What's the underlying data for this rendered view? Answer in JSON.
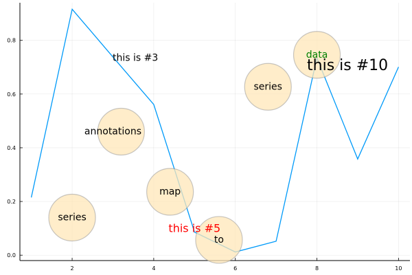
{
  "chart_data": {
    "type": "line",
    "title": "",
    "xlabel": "",
    "ylabel": "",
    "xlim": [
      0.72,
      10.28
    ],
    "ylim": [
      -0.02,
      0.94
    ],
    "x_ticks": [
      2,
      4,
      6,
      8,
      10
    ],
    "y_ticks": [
      0.0,
      0.2,
      0.4,
      0.6,
      0.8
    ],
    "grid": true,
    "legend": "none",
    "series": [
      {
        "color": "#009af9",
        "x": [
          1,
          2,
          3,
          4,
          5,
          6,
          7,
          8,
          9,
          10
        ],
        "y": [
          0.215,
          0.916,
          0.738,
          0.561,
          0.086,
          0.012,
          0.052,
          0.735,
          0.358,
          0.701
        ]
      }
    ],
    "markers": {
      "color": "#ffe7b8",
      "points": [
        {
          "x": 2.0,
          "y": 0.14
        },
        {
          "x": 3.2,
          "y": 0.46
        },
        {
          "x": 4.4,
          "y": 0.236
        },
        {
          "x": 5.6,
          "y": 0.057
        },
        {
          "x": 6.8,
          "y": 0.627
        },
        {
          "x": 8.0,
          "y": 0.746
        }
      ]
    },
    "annotations": [
      {
        "text": "series",
        "x": 2.0,
        "y": 0.14,
        "color": "#000000",
        "size": 14
      },
      {
        "text": "annotations",
        "x": 3.0,
        "y": 0.46,
        "color": "#000000",
        "size": 14
      },
      {
        "text": "this is #3",
        "x": 3.55,
        "y": 0.734,
        "color": "#000000",
        "size": 14
      },
      {
        "text": "map",
        "x": 4.4,
        "y": 0.236,
        "color": "#000000",
        "size": 14
      },
      {
        "text": "this is #5",
        "x": 5.0,
        "y": 0.1,
        "color": "#ff0000",
        "size": 16
      },
      {
        "text": "to",
        "x": 5.6,
        "y": 0.057,
        "color": "#000000",
        "size": 14
      },
      {
        "text": "series",
        "x": 6.8,
        "y": 0.627,
        "color": "#000000",
        "size": 14
      },
      {
        "text": "data",
        "x": 8.0,
        "y": 0.746,
        "color": "#008000",
        "size": 14
      },
      {
        "text": "this is #10",
        "x": 8.75,
        "y": 0.706,
        "color": "#000000",
        "size": 22
      }
    ]
  }
}
